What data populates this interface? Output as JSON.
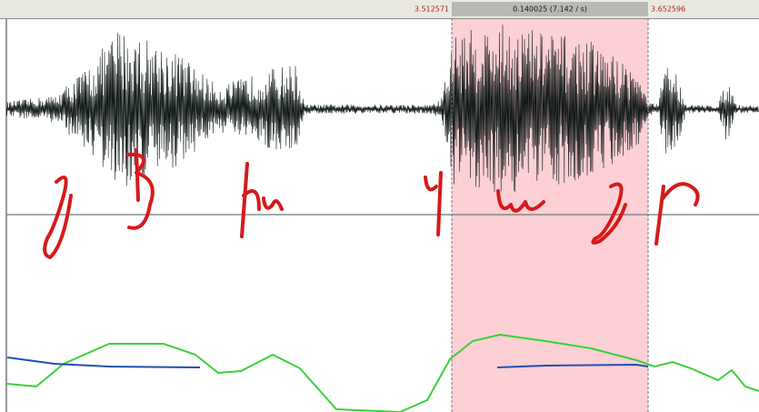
{
  "selection": {
    "start": "3.512571",
    "duration": "0.140025 (7.142 / s)",
    "end": "3.652596"
  }
}
